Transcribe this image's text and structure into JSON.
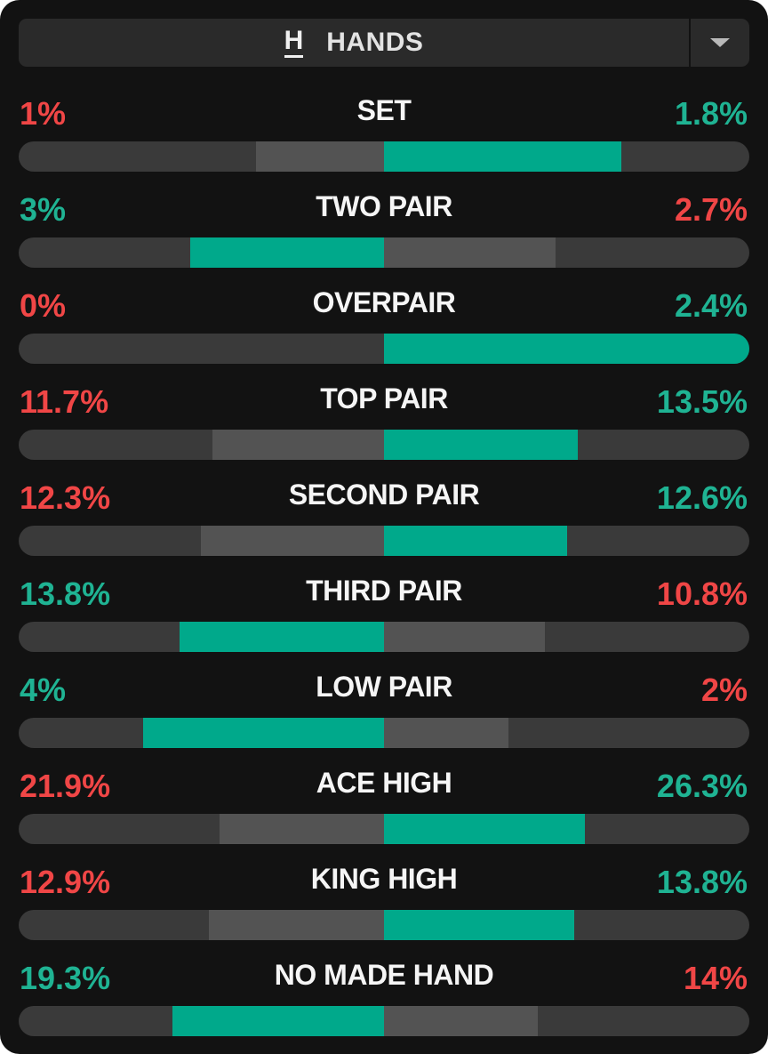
{
  "header": {
    "icon_letter": "H",
    "title": "HANDS",
    "icon": "chevron-down-icon"
  },
  "colors": {
    "positive": "#00a98b",
    "negative": "#f04646",
    "track": "#3a3a3a",
    "opponent": "#535353"
  },
  "rows": [
    {
      "label": "SET",
      "left": "1%",
      "right": "1.8%",
      "left_color": "#f04646",
      "right_color": "#1fb393",
      "left_ratio": 0.35,
      "right_ratio": 0.65
    },
    {
      "label": "TWO PAIR",
      "left": "3%",
      "right": "2.7%",
      "left_color": "#1fb393",
      "right_color": "#f04646",
      "left_ratio": 0.53,
      "right_ratio": 0.47
    },
    {
      "label": "OVERPAIR",
      "left": "0%",
      "right": "2.4%",
      "left_color": "#f04646",
      "right_color": "#1fb393",
      "left_ratio": 0.0,
      "right_ratio": 1.0
    },
    {
      "label": "TOP PAIR",
      "left": "11.7%",
      "right": "13.5%",
      "left_color": "#f04646",
      "right_color": "#1fb393",
      "left_ratio": 0.47,
      "right_ratio": 0.53
    },
    {
      "label": "SECOND PAIR",
      "left": "12.3%",
      "right": "12.6%",
      "left_color": "#f04646",
      "right_color": "#1fb393",
      "left_ratio": 0.5,
      "right_ratio": 0.5
    },
    {
      "label": "THIRD PAIR",
      "left": "13.8%",
      "right": "10.8%",
      "left_color": "#1fb393",
      "right_color": "#f04646",
      "left_ratio": 0.56,
      "right_ratio": 0.44
    },
    {
      "label": "LOW PAIR",
      "left": "4%",
      "right": "2%",
      "left_color": "#1fb393",
      "right_color": "#f04646",
      "left_ratio": 0.66,
      "right_ratio": 0.34
    },
    {
      "label": "ACE HIGH",
      "left": "21.9%",
      "right": "26.3%",
      "left_color": "#f04646",
      "right_color": "#1fb393",
      "left_ratio": 0.45,
      "right_ratio": 0.55
    },
    {
      "label": "KING HIGH",
      "left": "12.9%",
      "right": "13.8%",
      "left_color": "#f04646",
      "right_color": "#1fb393",
      "left_ratio": 0.48,
      "right_ratio": 0.52
    },
    {
      "label": "NO MADE HAND",
      "left": "19.3%",
      "right": "14%",
      "left_color": "#1fb393",
      "right_color": "#f04646",
      "left_ratio": 0.58,
      "right_ratio": 0.42
    }
  ]
}
